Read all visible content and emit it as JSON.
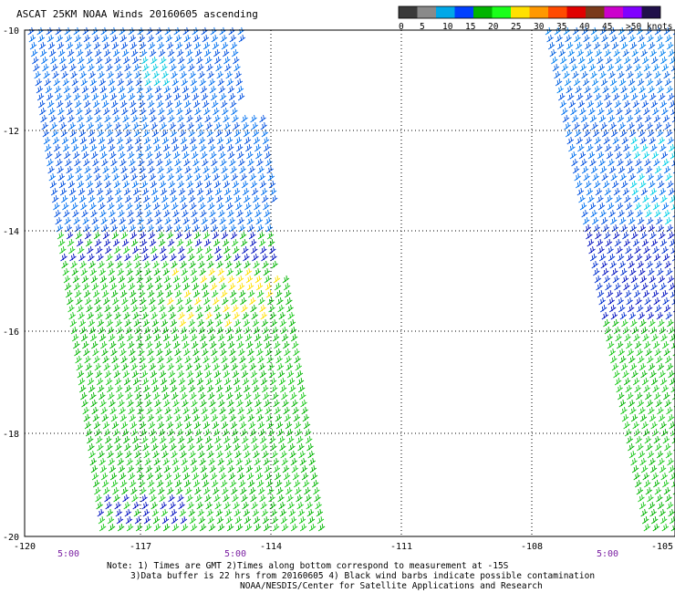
{
  "title": "ASCAT 25KM NOAA Winds 20160605 ascending",
  "colorbar": {
    "colors": [
      "#3a3a3a",
      "#8a8a8a",
      "#00a8e8",
      "#0040ff",
      "#00b400",
      "#1aff1a",
      "#ffe000",
      "#ff9800",
      "#ff4a00",
      "#e00000",
      "#7a3a1a",
      "#cc00cc",
      "#8000ff",
      "#20104a"
    ],
    "labels": [
      "0",
      "5",
      "10",
      "15",
      "20",
      "25",
      "30",
      "35",
      "40",
      "45",
      ">50 knots"
    ]
  },
  "map": {
    "x_ticks": [
      "-120",
      "-117",
      "-114",
      "-111",
      "-108",
      "-105"
    ],
    "y_ticks": [
      "-10",
      "-12",
      "-14",
      "-16",
      "-18",
      "-20"
    ],
    "time_labels": [
      "5:00",
      "5:00",
      "5:00"
    ],
    "swaths": [
      {
        "name": "west-swath",
        "pass_time": "5:00"
      },
      {
        "name": "east-swath",
        "pass_time": "5:00"
      }
    ],
    "lon_range": [
      -120,
      -105
    ],
    "lat_range": [
      -20,
      -10
    ]
  },
  "notes": {
    "line1": "Note: 1) Times are GMT 2)Times along bottom correspond to measurement at -15S",
    "line2": "3)Data buffer is 22 hrs from 20160605 4) Black wind barbs indicate possible contamination",
    "line3": "NOAA/NESDIS/Center for Satellite Applications and Research"
  }
}
